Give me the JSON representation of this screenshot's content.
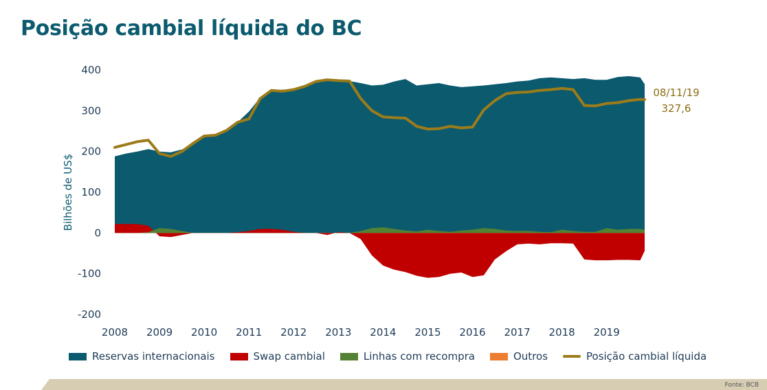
{
  "chart_data": {
    "type": "area",
    "title": "Posição cambial líquida do BC",
    "ylabel": "Bilhões de US$",
    "xlabel": "",
    "x_range": [
      2008.0,
      2019.85
    ],
    "ylim": [
      -200,
      400
    ],
    "yticks": [
      "-200",
      "-100",
      "0",
      "100",
      "200",
      "300",
      "400"
    ],
    "xticks": [
      "2008",
      "2009",
      "2010",
      "2011",
      "2012",
      "2013",
      "2014",
      "2015",
      "2016",
      "2017",
      "2018",
      "2019"
    ],
    "grid": false,
    "legend_position": "bottom",
    "x": [
      2008.0,
      2008.25,
      2008.5,
      2008.75,
      2009.0,
      2009.25,
      2009.5,
      2009.75,
      2010.0,
      2010.25,
      2010.5,
      2010.75,
      2011.0,
      2011.25,
      2011.5,
      2011.75,
      2012.0,
      2012.25,
      2012.5,
      2012.75,
      2013.0,
      2013.25,
      2013.5,
      2013.75,
      2014.0,
      2014.25,
      2014.5,
      2014.75,
      2015.0,
      2015.25,
      2015.5,
      2015.75,
      2016.0,
      2016.25,
      2016.5,
      2016.75,
      2017.0,
      2017.25,
      2017.5,
      2017.75,
      2018.0,
      2018.25,
      2018.5,
      2018.75,
      2019.0,
      2019.25,
      2019.5,
      2019.75,
      2019.85
    ],
    "series": [
      {
        "name": "Reservas internacionais",
        "color": "#0b5a6e",
        "kind": "area",
        "values": [
          188,
          195,
          200,
          206,
          200,
          198,
          205,
          220,
          238,
          240,
          252,
          272,
          298,
          332,
          348,
          352,
          352,
          360,
          372,
          376,
          374,
          373,
          368,
          362,
          364,
          372,
          378,
          362,
          365,
          368,
          362,
          358,
          360,
          362,
          365,
          368,
          372,
          374,
          380,
          382,
          380,
          378,
          380,
          376,
          376,
          383,
          385,
          382,
          365
        ]
      },
      {
        "name": "Swap cambial",
        "color": "#c00000",
        "kind": "area",
        "values": [
          22,
          22,
          22,
          18,
          -8,
          -10,
          -5,
          0,
          0,
          0,
          0,
          2,
          5,
          10,
          10,
          8,
          3,
          0,
          0,
          -5,
          2,
          0,
          -15,
          -55,
          -80,
          -90,
          -96,
          -105,
          -110,
          -108,
          -100,
          -97,
          -108,
          -104,
          -65,
          -45,
          -28,
          -26,
          -28,
          -25,
          -25,
          -26,
          -65,
          -67,
          -67,
          -66,
          -66,
          -67,
          -44
        ]
      },
      {
        "name": "Linhas com recompra",
        "color": "#548235",
        "kind": "area",
        "values": [
          0,
          0,
          0,
          2,
          12,
          10,
          5,
          0,
          0,
          0,
          0,
          0,
          0,
          0,
          0,
          0,
          0,
          0,
          0,
          0,
          0,
          0,
          5,
          12,
          14,
          10,
          6,
          4,
          8,
          5,
          3,
          6,
          8,
          12,
          10,
          6,
          5,
          5,
          3,
          2,
          8,
          5,
          3,
          3,
          12,
          8,
          10,
          10,
          8
        ]
      },
      {
        "name": "Outros",
        "color": "#ed7d31",
        "kind": "area",
        "values": [
          0,
          0,
          0,
          0,
          0,
          0,
          0,
          0,
          0,
          0,
          0,
          0,
          0,
          0,
          0,
          0,
          0,
          0,
          0,
          0,
          0,
          0,
          0,
          0,
          0,
          0,
          0,
          0,
          0,
          0,
          0,
          0,
          0,
          0,
          0,
          0,
          0,
          0,
          0,
          0,
          0,
          0,
          0,
          0,
          0,
          0,
          0,
          0,
          0
        ]
      },
      {
        "name": "Posição cambial líquida",
        "color": "#9c7c1a",
        "kind": "line",
        "values": [
          210,
          217,
          224,
          228,
          195,
          188,
          200,
          220,
          238,
          240,
          252,
          272,
          280,
          330,
          350,
          348,
          352,
          360,
          372,
          376,
          374,
          373,
          330,
          300,
          285,
          283,
          282,
          262,
          255,
          256,
          262,
          258,
          260,
          302,
          325,
          342,
          345,
          346,
          350,
          352,
          355,
          352,
          313,
          312,
          318,
          320,
          325,
          328,
          327.6
        ]
      }
    ],
    "annotation": {
      "date": "08/11/19",
      "value": "327,6"
    }
  },
  "source": "Fonte: BCB"
}
